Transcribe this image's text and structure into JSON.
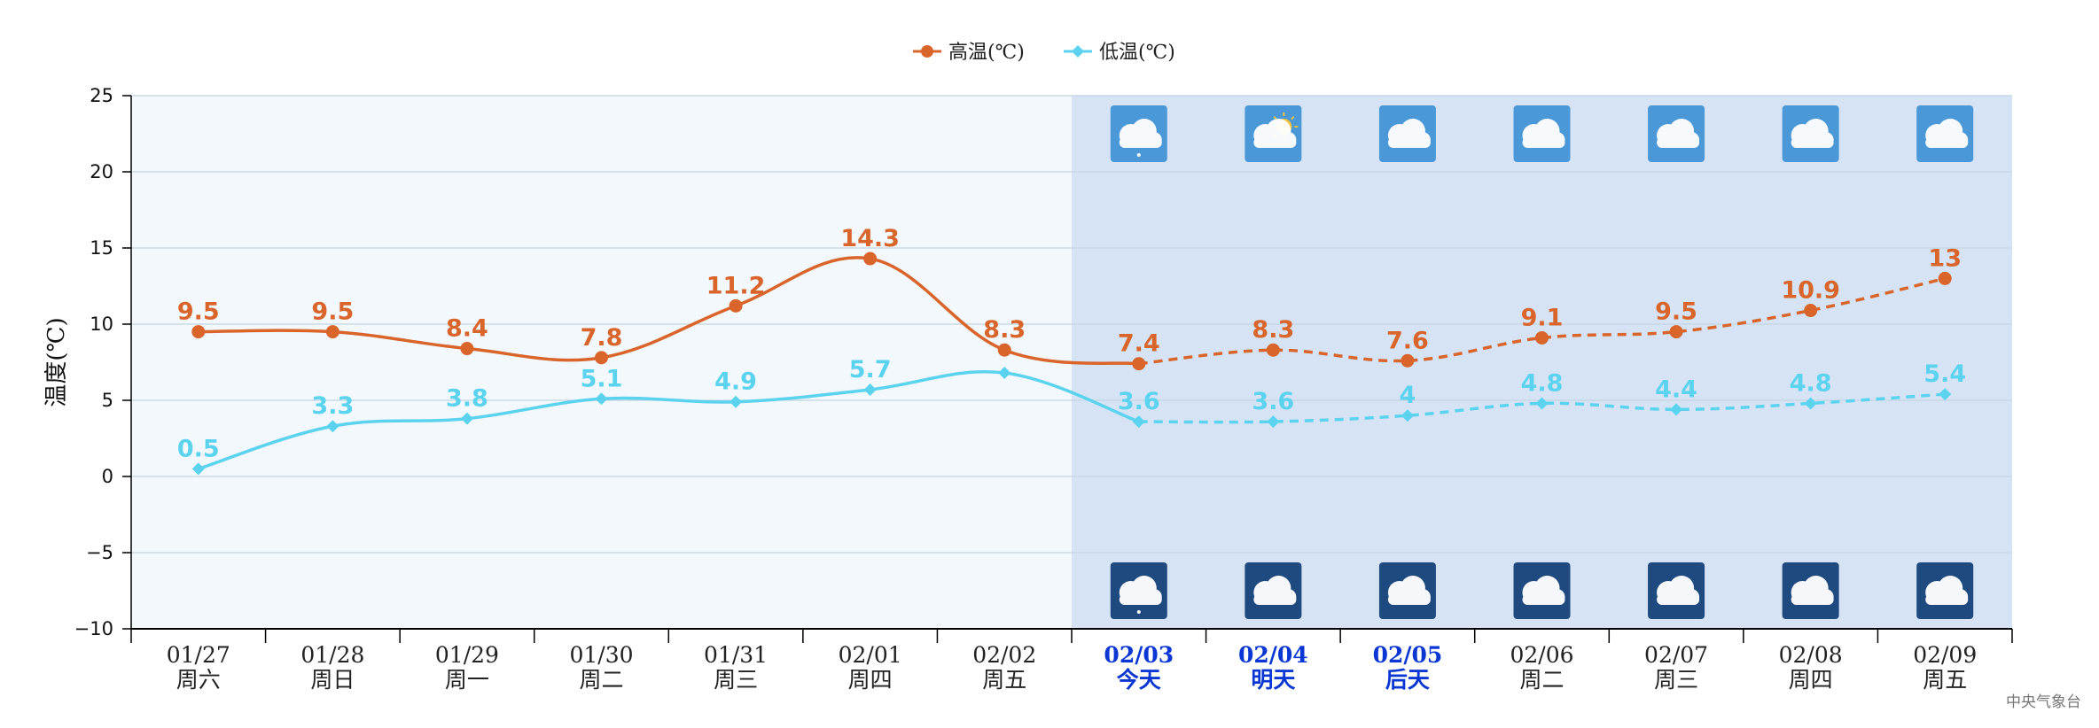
{
  "chart_data": {
    "type": "line",
    "ylabel": "温度(℃)",
    "ylim": [
      -10,
      25
    ],
    "yticks": [
      -10,
      -5,
      0,
      5,
      10,
      15,
      20,
      25
    ],
    "grid": true,
    "legend_position": "top-center",
    "categories": [
      {
        "date": "01/27",
        "day": "周六"
      },
      {
        "date": "01/28",
        "day": "周日"
      },
      {
        "date": "01/29",
        "day": "周一"
      },
      {
        "date": "01/30",
        "day": "周二"
      },
      {
        "date": "01/31",
        "day": "周三"
      },
      {
        "date": "02/01",
        "day": "周四"
      },
      {
        "date": "02/02",
        "day": "周五"
      },
      {
        "date": "02/03",
        "day": "今天"
      },
      {
        "date": "02/04",
        "day": "明天"
      },
      {
        "date": "02/05",
        "day": "后天"
      },
      {
        "date": "02/06",
        "day": "周二"
      },
      {
        "date": "02/07",
        "day": "周三"
      },
      {
        "date": "02/08",
        "day": "周四"
      },
      {
        "date": "02/09",
        "day": "周五"
      }
    ],
    "highlighted_dates": [
      "02/03",
      "02/04",
      "02/05"
    ],
    "forecast_start_index": 7,
    "series": [
      {
        "name": "高温(℃)",
        "color": "#d9652b",
        "marker": "circle",
        "values": [
          9.5,
          9.5,
          8.4,
          7.8,
          11.2,
          14.3,
          8.3,
          7.4,
          8.3,
          7.6,
          9.1,
          9.5,
          10.9,
          13
        ],
        "point_labels": [
          "9.5",
          "9.5",
          "8.4",
          "7.8",
          "11.2",
          "14.3",
          "8.3",
          "7.4",
          "8.3",
          "7.6",
          "9.1",
          "9.5",
          "10.9",
          "13"
        ]
      },
      {
        "name": "低温(℃)",
        "color": "#5bd3ef",
        "marker": "diamond",
        "values": [
          0.5,
          3.3,
          3.8,
          5.1,
          4.9,
          5.7,
          6.8,
          3.6,
          3.6,
          4,
          4.8,
          4.4,
          4.8,
          5.4
        ],
        "point_labels": [
          "0.5",
          "3.3",
          "3.8",
          "5.1",
          "4.9",
          "5.7",
          "",
          "3.6",
          "3.6",
          "4",
          "4.8",
          "4.4",
          "4.8",
          "5.4"
        ]
      }
    ],
    "weather_icons": {
      "day": [
        "cloud-rain-icon",
        "sun-cloud-icon",
        "cloud-icon",
        "cloud-icon",
        "cloud-icon",
        "cloud-icon",
        "cloud-icon"
      ],
      "night": [
        "cloud-rain-icon",
        "cloud-icon",
        "cloud-icon",
        "cloud-icon",
        "cloud-icon",
        "cloud-icon",
        "cloud-icon"
      ]
    },
    "colors": {
      "history_bg": "#f2f8fc",
      "forecast_bg": "#d5e3f4",
      "grid": "#c5d4e0",
      "day_icon_bg": "#4a98d8",
      "night_icon_bg": "#1f4a80",
      "highlight_text": "#0a37d4"
    }
  },
  "source": "中央气象台"
}
